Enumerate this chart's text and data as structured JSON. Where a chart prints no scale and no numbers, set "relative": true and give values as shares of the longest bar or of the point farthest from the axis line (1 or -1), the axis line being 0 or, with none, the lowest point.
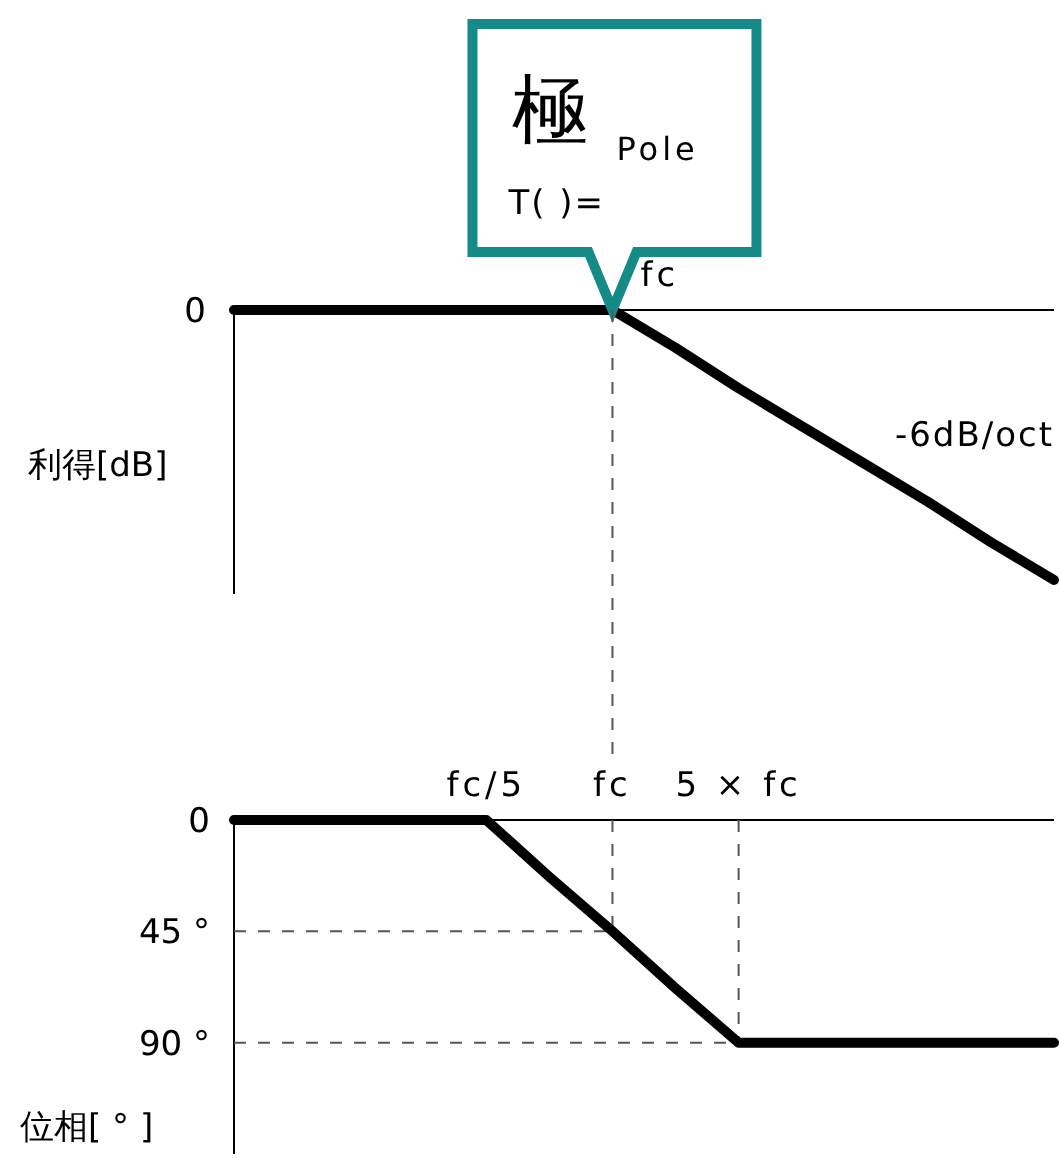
{
  "chart_data": [
    {
      "type": "line",
      "relative": true,
      "ylabel": "利得[dB]",
      "categories": [
        null,
        null,
        null,
        null,
        null,
        null,
        null,
        null,
        null,
        null,
        null,
        null,
        null,
        null
      ],
      "series": [
        {
          "color": "#000000",
          "values": [
            0,
            0,
            0,
            0,
            0,
            0,
            0,
            -0.14,
            -0.29,
            -0.43,
            -0.57,
            -0.71,
            -0.86,
            -1
          ]
        }
      ],
      "annotations": [
        "0",
        "fc",
        "-6dB/oct",
        "極",
        "Pole",
        "T(   )="
      ]
    },
    {
      "type": "line",
      "ylim": [
        135,
        0
      ],
      "ylabel": "位相[ ° ]",
      "categories": [
        null,
        null,
        null,
        null,
        "fc/5",
        null,
        "fc",
        null,
        "5 × fc",
        null,
        null,
        null,
        null,
        null
      ],
      "yticks": [
        {
          "value": 0,
          "label": "0"
        },
        {
          "value": 45,
          "label": "45 °"
        },
        {
          "value": 90,
          "label": "90 °"
        }
      ],
      "series": [
        {
          "color": "#000000",
          "values": [
            0,
            0,
            0,
            0,
            0,
            23,
            45,
            68,
            90,
            90,
            90,
            90,
            90,
            90
          ]
        }
      ],
      "ref_lines": [
        {
          "axis": "x",
          "value": "fc",
          "line_style": "dashed",
          "color": "#555555"
        },
        {
          "axis": "x",
          "value": "5 × fc",
          "line_style": "dashed",
          "color": "#555555"
        },
        {
          "axis": "y",
          "value": 45,
          "line_style": "dashed",
          "color": "#555555"
        },
        {
          "axis": "y",
          "value": 90,
          "line_style": "dashed",
          "color": "#555555"
        }
      ]
    }
  ]
}
